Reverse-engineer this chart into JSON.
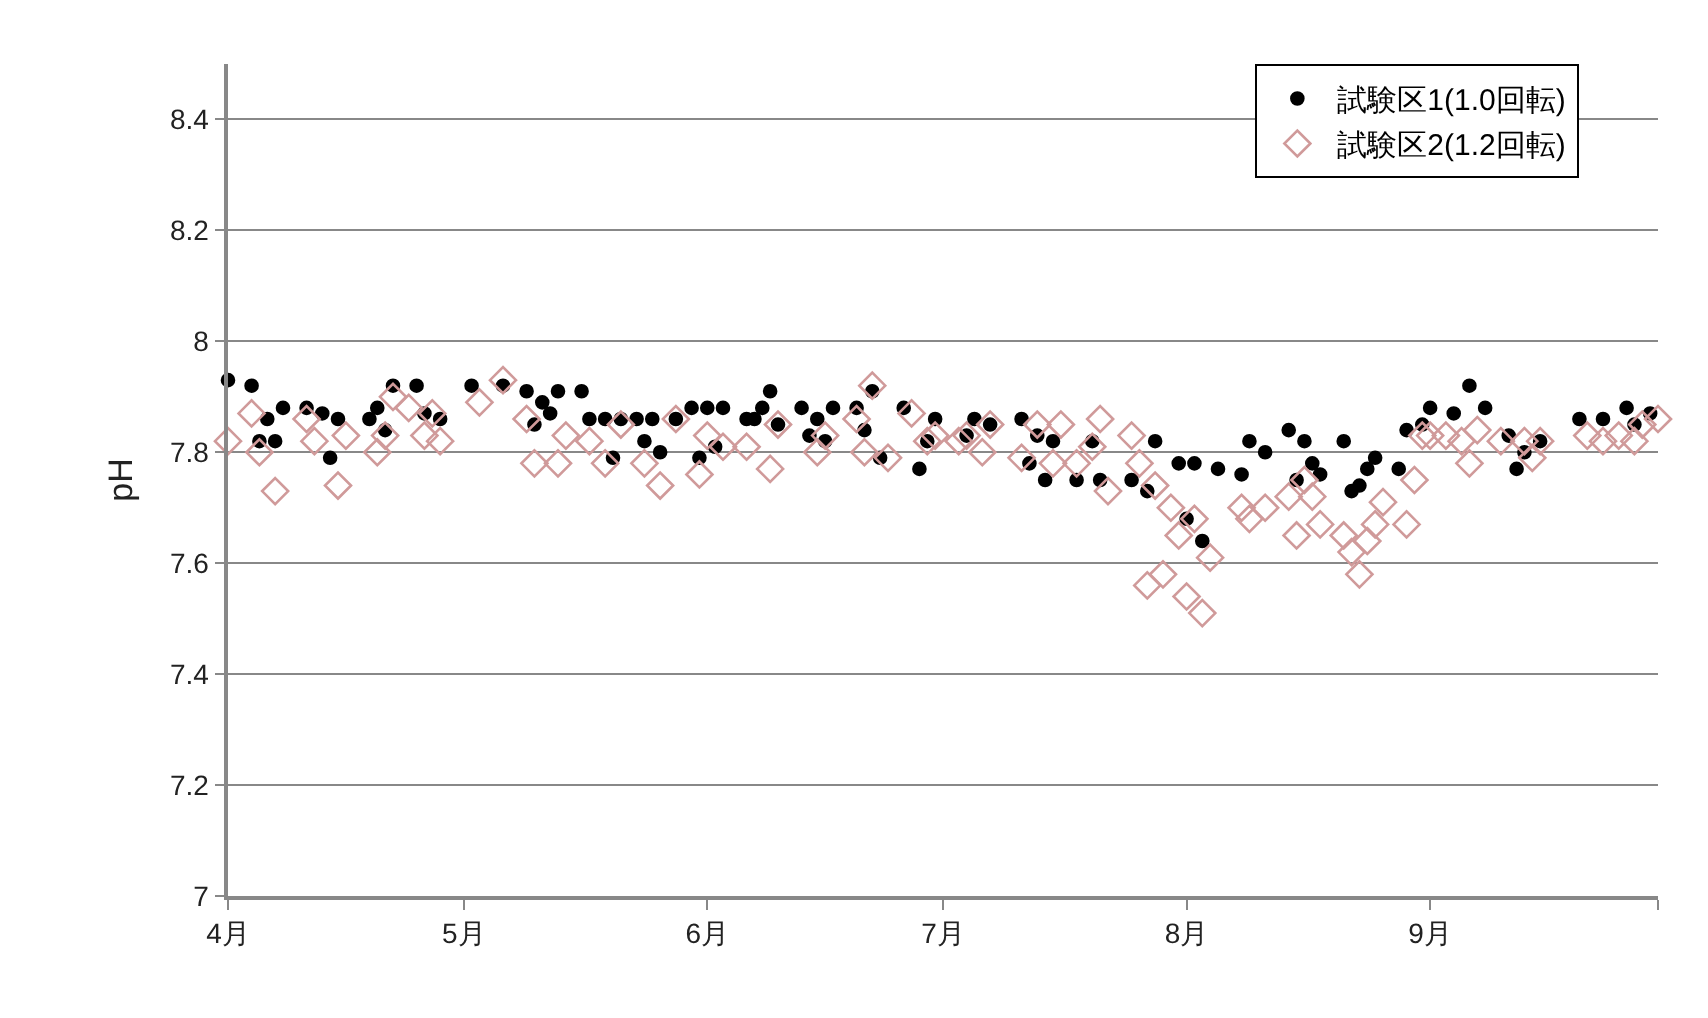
{
  "chart_data": {
    "type": "scatter",
    "ylabel": "pH",
    "ylim": [
      7,
      8.5
    ],
    "yticks": [
      7,
      7.2,
      7.4,
      7.6,
      7.8,
      8,
      8.2,
      8.4
    ],
    "xlim": [
      "--04-01",
      "--09-30"
    ],
    "xticks": [
      {
        "value": "--04-01",
        "label": "4月"
      },
      {
        "value": "--05-01",
        "label": "5月"
      },
      {
        "value": "--06-01",
        "label": "6月"
      },
      {
        "value": "--07-01",
        "label": "7月"
      },
      {
        "value": "--08-01",
        "label": "8月"
      },
      {
        "value": "--09-01",
        "label": "9月"
      },
      {
        "value": "--09-30",
        "label": null
      }
    ],
    "grid": "y",
    "legend": "top right",
    "series": [
      {
        "name": "試験区1(1.0回転)",
        "color": "#000000",
        "marker": "circle",
        "x": [
          "--04-01",
          "--04-04",
          "--04-05",
          "--04-06",
          "--04-07",
          "--04-08",
          "--04-11",
          "--04-13",
          "--04-14",
          "--04-15",
          "--04-19",
          "--04-20",
          "--04-21",
          "--04-22",
          "--04-25",
          "--04-26",
          "--04-28",
          "--05-02",
          "--05-06",
          "--05-09",
          "--05-10",
          "--05-11",
          "--05-12",
          "--05-13",
          "--05-16",
          "--05-17",
          "--05-19",
          "--05-20",
          "--05-21",
          "--05-23",
          "--05-24",
          "--05-25",
          "--05-26",
          "--05-28",
          "--05-30",
          "--05-31",
          "--06-01",
          "--06-02",
          "--06-03",
          "--06-06",
          "--06-07",
          "--06-08",
          "--06-09",
          "--06-10",
          "--06-13",
          "--06-14",
          "--06-15",
          "--06-16",
          "--06-17",
          "--06-20",
          "--06-21",
          "--06-22",
          "--06-23",
          "--06-26",
          "--06-28",
          "--06-29",
          "--06-30",
          "--07-04",
          "--07-05",
          "--07-07",
          "--07-11",
          "--07-12",
          "--07-13",
          "--07-14",
          "--07-15",
          "--07-18",
          "--07-20",
          "--07-21",
          "--07-25",
          "--07-27",
          "--07-28",
          "--07-31",
          "--08-01",
          "--08-02",
          "--08-03",
          "--08-05",
          "--08-08",
          "--08-09",
          "--08-11",
          "--08-14",
          "--08-15",
          "--08-16",
          "--08-17",
          "--08-18",
          "--08-21",
          "--08-22",
          "--08-23",
          "--08-24",
          "--08-25",
          "--08-28",
          "--08-29",
          "--08-31",
          "--09-01",
          "--09-04",
          "--09-06",
          "--09-08",
          "--09-11",
          "--09-12",
          "--09-13",
          "--09-15",
          "--09-20",
          "--09-23",
          "--09-26",
          "--09-27",
          "--09-29"
        ],
        "values": [
          7.93,
          7.92,
          7.82,
          7.86,
          7.82,
          7.88,
          7.88,
          7.87,
          7.79,
          7.86,
          7.86,
          7.88,
          7.84,
          7.92,
          7.92,
          7.87,
          7.86,
          7.92,
          7.92,
          7.91,
          7.85,
          7.89,
          7.87,
          7.91,
          7.91,
          7.86,
          7.86,
          7.79,
          7.86,
          7.86,
          7.82,
          7.86,
          7.8,
          7.86,
          7.88,
          7.79,
          7.88,
          7.81,
          7.88,
          7.86,
          7.86,
          7.88,
          7.91,
          7.85,
          7.88,
          7.83,
          7.86,
          7.82,
          7.88,
          7.88,
          7.84,
          7.91,
          7.79,
          7.88,
          7.77,
          7.82,
          7.86,
          7.83,
          7.86,
          7.85,
          7.86,
          7.78,
          7.83,
          7.75,
          7.82,
          7.75,
          7.82,
          7.75,
          7.75,
          7.73,
          7.82,
          7.78,
          7.68,
          7.78,
          7.64,
          7.77,
          7.76,
          7.82,
          7.8,
          7.84,
          7.75,
          7.82,
          7.78,
          7.76,
          7.82,
          7.73,
          7.74,
          7.77,
          7.79,
          7.77,
          7.84,
          7.85,
          7.88,
          7.87,
          7.92,
          7.88,
          7.83,
          7.77,
          7.8,
          7.82,
          7.86,
          7.86,
          7.88,
          7.85,
          7.87
        ]
      },
      {
        "name": "試験区2(1.2回転)",
        "color": "#d09a9a",
        "marker": "diamond",
        "x": [
          "--04-01",
          "--04-04",
          "--04-05",
          "--04-07",
          "--04-11",
          "--04-12",
          "--04-15",
          "--04-16",
          "--04-20",
          "--04-21",
          "--04-22",
          "--04-24",
          "--04-26",
          "--04-27",
          "--04-28",
          "--05-03",
          "--05-06",
          "--05-09",
          "--05-10",
          "--05-13",
          "--05-14",
          "--05-17",
          "--05-19",
          "--05-21",
          "--05-24",
          "--05-26",
          "--05-28",
          "--05-31",
          "--06-01",
          "--06-03",
          "--06-06",
          "--06-09",
          "--06-10",
          "--06-15",
          "--06-16",
          "--06-20",
          "--06-21",
          "--06-22",
          "--06-24",
          "--06-27",
          "--06-29",
          "--06-30",
          "--07-03",
          "--07-04",
          "--07-06",
          "--07-07",
          "--07-11",
          "--07-13",
          "--07-15",
          "--07-16",
          "--07-18",
          "--07-20",
          "--07-21",
          "--07-22",
          "--07-25",
          "--07-26",
          "--07-27",
          "--07-28",
          "--07-29",
          "--07-30",
          "--07-31",
          "--08-01",
          "--08-02",
          "--08-03",
          "--08-04",
          "--08-08",
          "--08-09",
          "--08-11",
          "--08-14",
          "--08-15",
          "--08-16",
          "--08-17",
          "--08-18",
          "--08-21",
          "--08-22",
          "--08-23",
          "--08-24",
          "--08-25",
          "--08-26",
          "--08-29",
          "--08-30",
          "--08-31",
          "--09-01",
          "--09-03",
          "--09-05",
          "--09-06",
          "--09-07",
          "--09-10",
          "--09-13",
          "--09-14",
          "--09-15",
          "--09-21",
          "--09-23",
          "--09-25",
          "--09-27",
          "--09-28",
          "--09-30"
        ],
        "values": [
          7.82,
          7.87,
          7.8,
          7.73,
          7.86,
          7.82,
          7.74,
          7.83,
          7.8,
          7.83,
          7.9,
          7.88,
          7.83,
          7.87,
          7.82,
          7.89,
          7.93,
          7.86,
          7.78,
          7.78,
          7.83,
          7.82,
          7.78,
          7.85,
          7.78,
          7.74,
          7.86,
          7.76,
          7.83,
          7.81,
          7.81,
          7.77,
          7.85,
          7.8,
          7.83,
          7.86,
          7.8,
          7.92,
          7.79,
          7.87,
          7.82,
          7.83,
          7.82,
          7.83,
          7.8,
          7.85,
          7.79,
          7.85,
          7.78,
          7.85,
          7.78,
          7.81,
          7.86,
          7.73,
          7.83,
          7.78,
          7.56,
          7.74,
          7.58,
          7.7,
          7.65,
          7.54,
          7.68,
          7.51,
          7.61,
          7.7,
          7.68,
          7.7,
          7.72,
          7.65,
          7.75,
          7.72,
          7.67,
          7.65,
          7.62,
          7.58,
          7.64,
          7.67,
          7.71,
          7.67,
          7.75,
          7.83,
          7.83,
          7.83,
          7.82,
          7.78,
          7.84,
          7.82,
          7.82,
          7.79,
          7.82,
          7.83,
          7.82,
          7.83,
          7.82,
          7.85,
          7.86
        ]
      }
    ]
  }
}
